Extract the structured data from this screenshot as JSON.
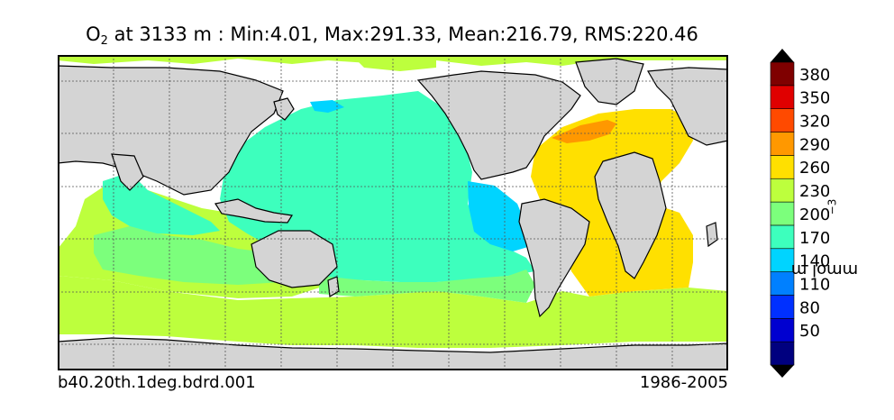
{
  "title": {
    "variable": "O",
    "subscript": "2",
    "rest": " at 3133 m : Min:4.01, Max:291.33, Mean:216.79, RMS:220.46"
  },
  "footer": {
    "case_name": "b40.20th.1deg.bdrd.001",
    "period": "1986-2005"
  },
  "colorbar": {
    "units_base": "mmol m",
    "units_exp": "−3",
    "tick_labels": [
      "380",
      "350",
      "320",
      "290",
      "260",
      "230",
      "200",
      "170",
      "140",
      "110",
      "80",
      "50"
    ],
    "colors": [
      "#00007f",
      "#0000d0",
      "#0030ff",
      "#0080ff",
      "#00d4ff",
      "#3dffbd",
      "#7cff7c",
      "#bdff3d",
      "#ffe000",
      "#ff9800",
      "#ff4a00",
      "#e00000",
      "#7f0000"
    ]
  },
  "colors": {
    "land": "#d4d4d4",
    "missing": "#ffffff",
    "grid": "#555555"
  }
}
